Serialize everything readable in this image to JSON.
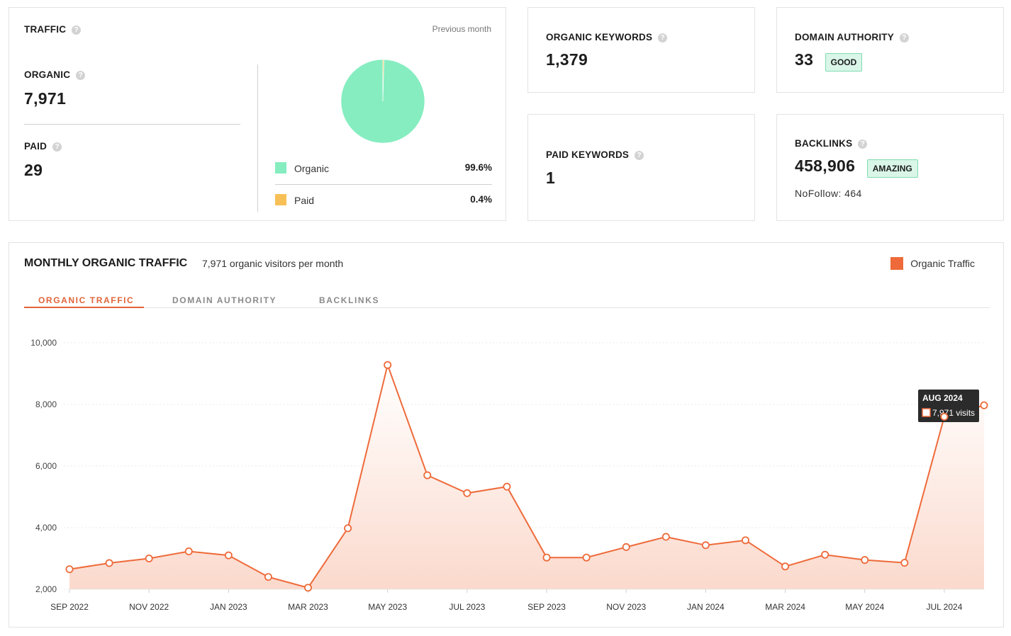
{
  "traffic": {
    "title": "TRAFFIC",
    "period": "Previous month",
    "organic_label": "ORGANIC",
    "organic_value": "7,971",
    "paid_label": "PAID",
    "paid_value": "29",
    "legend": [
      {
        "name": "Organic",
        "percent": "99.6%",
        "color": "#86edc0"
      },
      {
        "name": "Paid",
        "percent": "0.4%",
        "color": "#f7c056"
      }
    ],
    "pie_fractions": [
      0.996,
      0.004
    ]
  },
  "organic_keywords": {
    "label": "ORGANIC KEYWORDS",
    "value": "1,379"
  },
  "domain_authority": {
    "label": "DOMAIN AUTHORITY",
    "value": "33",
    "badge": "GOOD"
  },
  "paid_keywords": {
    "label": "PAID KEYWORDS",
    "value": "1"
  },
  "backlinks": {
    "label": "BACKLINKS",
    "value": "458,906",
    "badge": "AMAZING",
    "nofollow": "NoFollow: 464"
  },
  "help_icon": "?",
  "monthly": {
    "title": "MONTHLY ORGANIC TRAFFIC",
    "subtitle": "7,971 organic visitors per month",
    "legend_label": "Organic Traffic",
    "accent_color": "#ee6a3a",
    "tabs": [
      "ORGANIC TRAFFIC",
      "DOMAIN AUTHORITY",
      "BACKLINKS"
    ],
    "active_tab": 0,
    "tooltip": {
      "month": "AUG 2024",
      "text": "7,971 visits"
    }
  },
  "chart_data": {
    "type": "area",
    "series": [
      {
        "name": "Organic Traffic"
      }
    ],
    "x": [
      "SEP 2022",
      "OCT 2022",
      "NOV 2022",
      "DEC 2022",
      "JAN 2023",
      "FEB 2023",
      "MAR 2023",
      "APR 2023",
      "MAY 2023",
      "JUN 2023",
      "JUL 2023",
      "AUG 2023",
      "SEP 2023",
      "OCT 2023",
      "NOV 2023",
      "DEC 2023",
      "JAN 2024",
      "FEB 2024",
      "MAR 2024",
      "APR 2024",
      "MAY 2024",
      "JUN 2024",
      "JUL 2024",
      "AUG 2024"
    ],
    "values": [
      2650,
      2850,
      3000,
      3230,
      3100,
      2400,
      2050,
      3980,
      9280,
      5700,
      5120,
      5330,
      3030,
      3030,
      3370,
      3700,
      3430,
      3590,
      2740,
      3120,
      2950,
      2860,
      7600,
      7971
    ],
    "x_tick_labels": [
      "SEP 2022",
      "NOV 2022",
      "JAN 2023",
      "MAR 2023",
      "MAY 2023",
      "JUL 2023",
      "SEP 2023",
      "NOV 2023",
      "JAN 2024",
      "MAR 2024",
      "MAY 2024",
      "JUL 2024"
    ],
    "y_tick_labels": [
      "10,000",
      "8,000",
      "6,000",
      "4,000",
      "2,000"
    ],
    "y_ticks": [
      10000,
      8000,
      6000,
      4000,
      2000
    ],
    "ylim": [
      2000,
      10000
    ],
    "grid": true,
    "legend_position": "top-right"
  }
}
